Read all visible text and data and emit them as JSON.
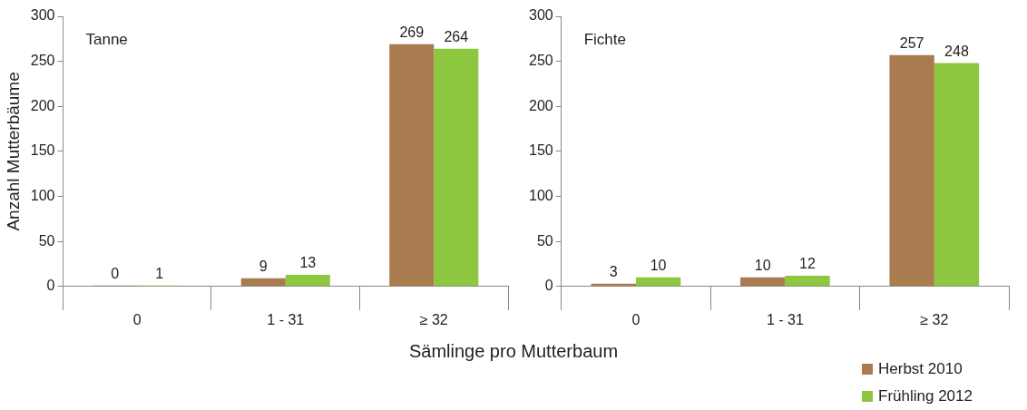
{
  "chart_data": [
    {
      "type": "bar",
      "ylabel": "Anzahl Mutterbäume",
      "xlabel": "Sämlinge pro Mutterbaum",
      "annotations": [
        "Tanne"
      ],
      "categories": [
        "0",
        "1 - 31",
        "≥ 32"
      ],
      "series": [
        {
          "name": "Herbst 2010",
          "color": "#a97c50",
          "values": [
            0,
            9,
            269
          ]
        },
        {
          "name": "Frühling 2012",
          "color": "#8dc63f",
          "values": [
            1,
            13,
            264
          ]
        }
      ],
      "ylim": [
        0,
        300
      ],
      "yticks": [
        0,
        50,
        100,
        150,
        200,
        250,
        300
      ],
      "grid": false,
      "data_labels": true,
      "legend": "bottom right"
    },
    {
      "type": "bar",
      "annotations": [
        "Fichte"
      ],
      "categories": [
        "0",
        "1 - 31",
        "≥ 32"
      ],
      "series": [
        {
          "color": "#a97c50",
          "values": [
            3,
            10,
            257
          ]
        },
        {
          "color": "#8dc63f",
          "values": [
            10,
            12,
            248
          ]
        }
      ],
      "ylim": [
        0,
        300
      ],
      "yticks": [
        0,
        50,
        100,
        150,
        200,
        250,
        300
      ],
      "grid": false,
      "data_labels": true
    }
  ]
}
